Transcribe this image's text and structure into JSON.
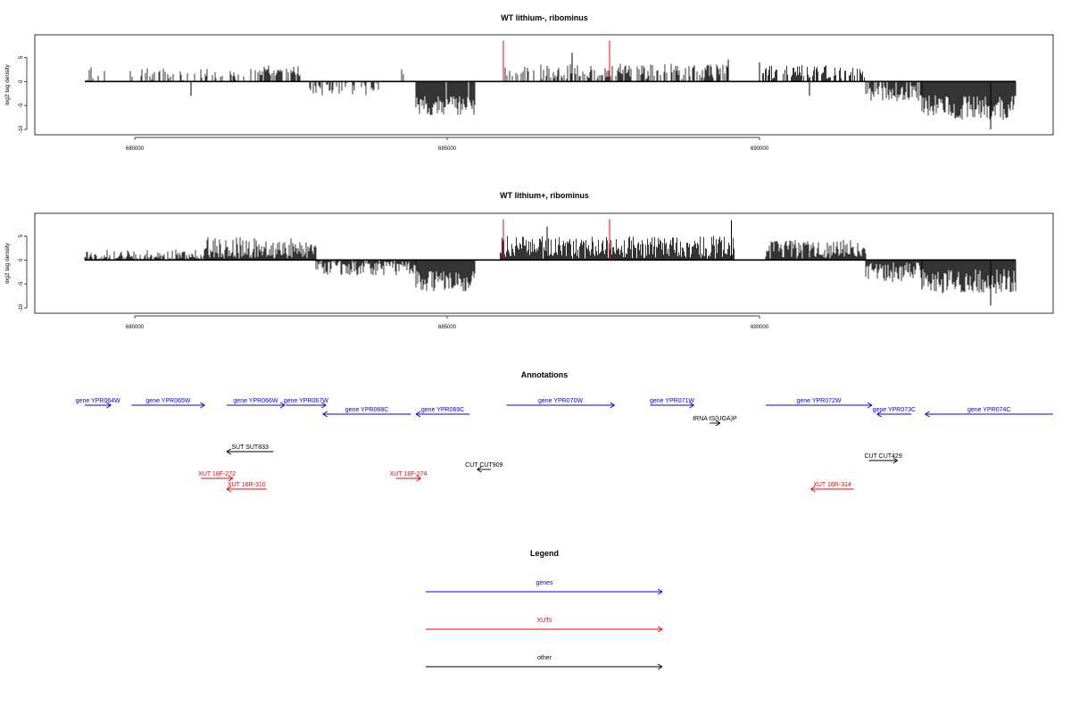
{
  "colors": {
    "bar": "#000000",
    "highlight": "#ff0000",
    "gene": "#0000ff",
    "xut": "#ff0000",
    "other": "#000000"
  },
  "chart_data": [
    {
      "type": "bar",
      "title": "WT lithium-, ribominus",
      "ylabel": "log2 tag density",
      "xlim": [
        678400,
        694700
      ],
      "ylim": [
        -10,
        9
      ],
      "xticks": [
        680000,
        685000,
        690000
      ],
      "xtick_labels": [
        "680000",
        "685000",
        "690000"
      ],
      "yticks": [
        -10,
        -5,
        0,
        5
      ],
      "ytick_labels": [
        "-10",
        "-5",
        "0",
        "5"
      ],
      "data_range": [
        679200,
        694100
      ],
      "segments": [
        {
          "start": 679200,
          "end": 682000,
          "mean": 1.6,
          "amp": 1.4,
          "density": 0.28,
          "seed": 11
        },
        {
          "start": 682000,
          "end": 682650,
          "mean": 2.2,
          "amp": 1.2,
          "density": 0.55,
          "seed": 12
        },
        {
          "start": 682800,
          "end": 683900,
          "mean": -1.6,
          "amp": 1.3,
          "density": 0.45,
          "seed": 13
        },
        {
          "start": 684200,
          "end": 684300,
          "mean": 2.5,
          "amp": 1.0,
          "density": 0.5,
          "seed": 14
        },
        {
          "start": 684500,
          "end": 685450,
          "mean": -5.0,
          "amp": 2.0,
          "density": 0.95,
          "seed": 15
        },
        {
          "start": 685900,
          "end": 689500,
          "mean": 2.1,
          "amp": 1.6,
          "density": 0.55,
          "seed": 16
        },
        {
          "start": 690050,
          "end": 691700,
          "mean": 2.0,
          "amp": 1.5,
          "density": 0.6,
          "seed": 17
        },
        {
          "start": 691700,
          "end": 692600,
          "mean": -2.5,
          "amp": 1.6,
          "density": 0.75,
          "seed": 18
        },
        {
          "start": 692600,
          "end": 694100,
          "mean": -5.5,
          "amp": 2.6,
          "density": 1.0,
          "seed": 19
        }
      ],
      "peaks": [
        {
          "x": 687000,
          "y": 6.0
        },
        {
          "x": 689500,
          "y": 4.6
        },
        {
          "x": 690000,
          "y": 4.0
        },
        {
          "x": 690800,
          "y": -3.0
        },
        {
          "x": 680900,
          "y": -3.0
        },
        {
          "x": 693700,
          "y": -10.0
        }
      ],
      "highlights": [
        {
          "x": 685900,
          "y": 8.5
        },
        {
          "x": 687600,
          "y": 8.5
        }
      ]
    },
    {
      "type": "bar",
      "title": "WT lithium+, ribominus",
      "ylabel": "log2 tag density",
      "xlim": [
        678400,
        694700
      ],
      "ylim": [
        -10,
        9
      ],
      "xticks": [
        680000,
        685000,
        690000
      ],
      "xtick_labels": [
        "680000",
        "685000",
        "690000"
      ],
      "yticks": [
        -10,
        -5,
        0,
        5
      ],
      "ytick_labels": [
        "-10",
        "-5",
        "0",
        "5"
      ],
      "data_range": [
        679200,
        694100
      ],
      "segments": [
        {
          "start": 679200,
          "end": 681100,
          "mean": 0.6,
          "amp": 1.6,
          "density": 0.7,
          "seed": 21
        },
        {
          "start": 681100,
          "end": 682900,
          "mean": 2.2,
          "amp": 2.6,
          "density": 1.0,
          "seed": 22
        },
        {
          "start": 682900,
          "end": 684500,
          "mean": -1.2,
          "amp": 2.0,
          "density": 0.85,
          "seed": 23
        },
        {
          "start": 684500,
          "end": 685450,
          "mean": -4.5,
          "amp": 2.2,
          "density": 1.0,
          "seed": 24
        },
        {
          "start": 685850,
          "end": 689600,
          "mean": 2.6,
          "amp": 2.4,
          "density": 1.0,
          "seed": 25
        },
        {
          "start": 690100,
          "end": 691700,
          "mean": 2.0,
          "amp": 2.2,
          "density": 1.0,
          "seed": 26
        },
        {
          "start": 691700,
          "end": 692600,
          "mean": -2.5,
          "amp": 2.2,
          "density": 1.0,
          "seed": 27
        },
        {
          "start": 692600,
          "end": 694100,
          "mean": -4.5,
          "amp": 2.6,
          "density": 1.0,
          "seed": 28
        }
      ],
      "peaks": [
        {
          "x": 689550,
          "y": 8.3
        },
        {
          "x": 686600,
          "y": 7.0
        },
        {
          "x": 692600,
          "y": -6.0
        },
        {
          "x": 693700,
          "y": -9.5
        }
      ],
      "highlights": [
        {
          "x": 685900,
          "y": 8.5
        },
        {
          "x": 687600,
          "y": 8.5
        }
      ]
    }
  ],
  "annotations": {
    "title": "Annotations",
    "features": [
      {
        "label": "gene YPR064W",
        "kind": "gene",
        "strand": "+",
        "start": 679200,
        "end": 679620,
        "row": 1
      },
      {
        "label": "gene YPR065W",
        "kind": "gene",
        "strand": "+",
        "start": 679950,
        "end": 681120,
        "row": 1
      },
      {
        "label": "gene YPR066W",
        "kind": "gene",
        "strand": "+",
        "start": 681470,
        "end": 682400,
        "row": 1
      },
      {
        "label": "gene YPR067W",
        "kind": "gene",
        "strand": "+",
        "start": 682420,
        "end": 683060,
        "row": 1
      },
      {
        "label": "gene YPR068C",
        "kind": "gene",
        "strand": "-",
        "start": 683010,
        "end": 684420,
        "row": 2
      },
      {
        "label": "gene YPR069C",
        "kind": "gene",
        "strand": "-",
        "start": 684500,
        "end": 685360,
        "row": 2
      },
      {
        "label": "gene YPR070W",
        "kind": "gene",
        "strand": "+",
        "start": 685950,
        "end": 687680,
        "row": 1
      },
      {
        "label": "gene YPR071W",
        "kind": "gene",
        "strand": "+",
        "start": 688250,
        "end": 688950,
        "row": 1
      },
      {
        "label": "gene YPR072W",
        "kind": "gene",
        "strand": "+",
        "start": 690100,
        "end": 691800,
        "row": 1
      },
      {
        "label": "gene YPR073C",
        "kind": "gene",
        "strand": "-",
        "start": 691880,
        "end": 692430,
        "row": 2
      },
      {
        "label": "gene YPR074C",
        "kind": "gene",
        "strand": "-",
        "start": 692650,
        "end": 694700,
        "row": 2
      },
      {
        "label": "tRNA tS(UGA)P",
        "kind": "other",
        "strand": "+",
        "start": 689200,
        "end": 689370,
        "row": 3
      },
      {
        "label": "SUT SUT833",
        "kind": "other",
        "strand": "-",
        "start": 681470,
        "end": 682220,
        "row": 5
      },
      {
        "label": "CUT CUT909",
        "kind": "other",
        "strand": "-",
        "start": 685480,
        "end": 685700,
        "row": 7
      },
      {
        "label": "CUT CUT429",
        "kind": "other",
        "strand": "+",
        "start": 691750,
        "end": 692210,
        "row": 6
      },
      {
        "label": "XUT 16F-272",
        "kind": "xut",
        "strand": "+",
        "start": 681060,
        "end": 681570,
        "row": 8
      },
      {
        "label": "XUT 16R-310",
        "kind": "xut",
        "strand": "-",
        "start": 681470,
        "end": 682110,
        "row": 9
      },
      {
        "label": "XUT 16F-274",
        "kind": "xut",
        "strand": "+",
        "start": 684180,
        "end": 684580,
        "row": 8
      },
      {
        "label": "XUT 16R-314",
        "kind": "xut",
        "strand": "-",
        "start": 690820,
        "end": 691510,
        "row": 9
      }
    ]
  },
  "legend": {
    "title": "Legend",
    "items": [
      {
        "label": "genes",
        "kind": "gene"
      },
      {
        "label": "XUTs",
        "kind": "xut"
      },
      {
        "label": "other",
        "kind": "other"
      }
    ]
  }
}
